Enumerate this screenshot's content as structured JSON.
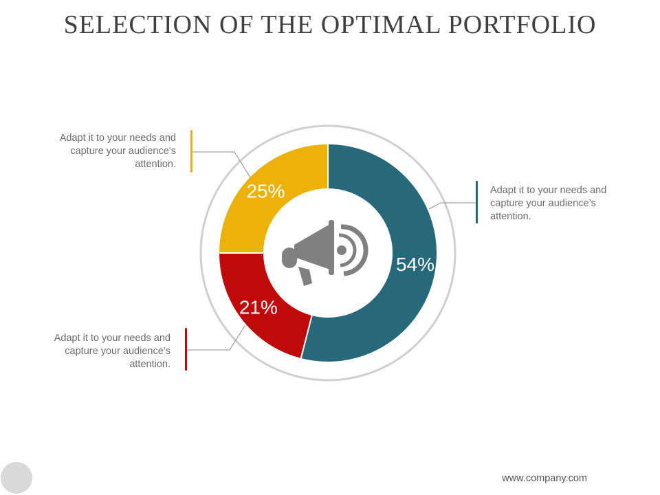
{
  "title": "SELECTION OF THE OPTIMAL PORTFOLIO",
  "colors": {
    "teal": "#27697B",
    "yellow": "#ECB20A",
    "red": "#BE0A0A",
    "ring": "#CFCFCF",
    "icon": "#808080",
    "text": "#6B6B6B"
  },
  "center_icon": "megaphone-icon",
  "chart_data": {
    "type": "pie",
    "style": "donut",
    "slices": [
      {
        "label": "54%",
        "value": 54,
        "color": "#27697B"
      },
      {
        "label": "21%",
        "value": 21,
        "color": "#BE0A0A"
      },
      {
        "label": "25%",
        "value": 25,
        "color": "#ECB20A"
      }
    ]
  },
  "callouts": {
    "teal": "Adapt it to your needs and capture your audience’s attention.",
    "yellow": "Adapt it to your needs and capture your audience’s attention.",
    "red": "Adapt it to your needs and capture your audience’s attention."
  },
  "footer": "www.company.com"
}
